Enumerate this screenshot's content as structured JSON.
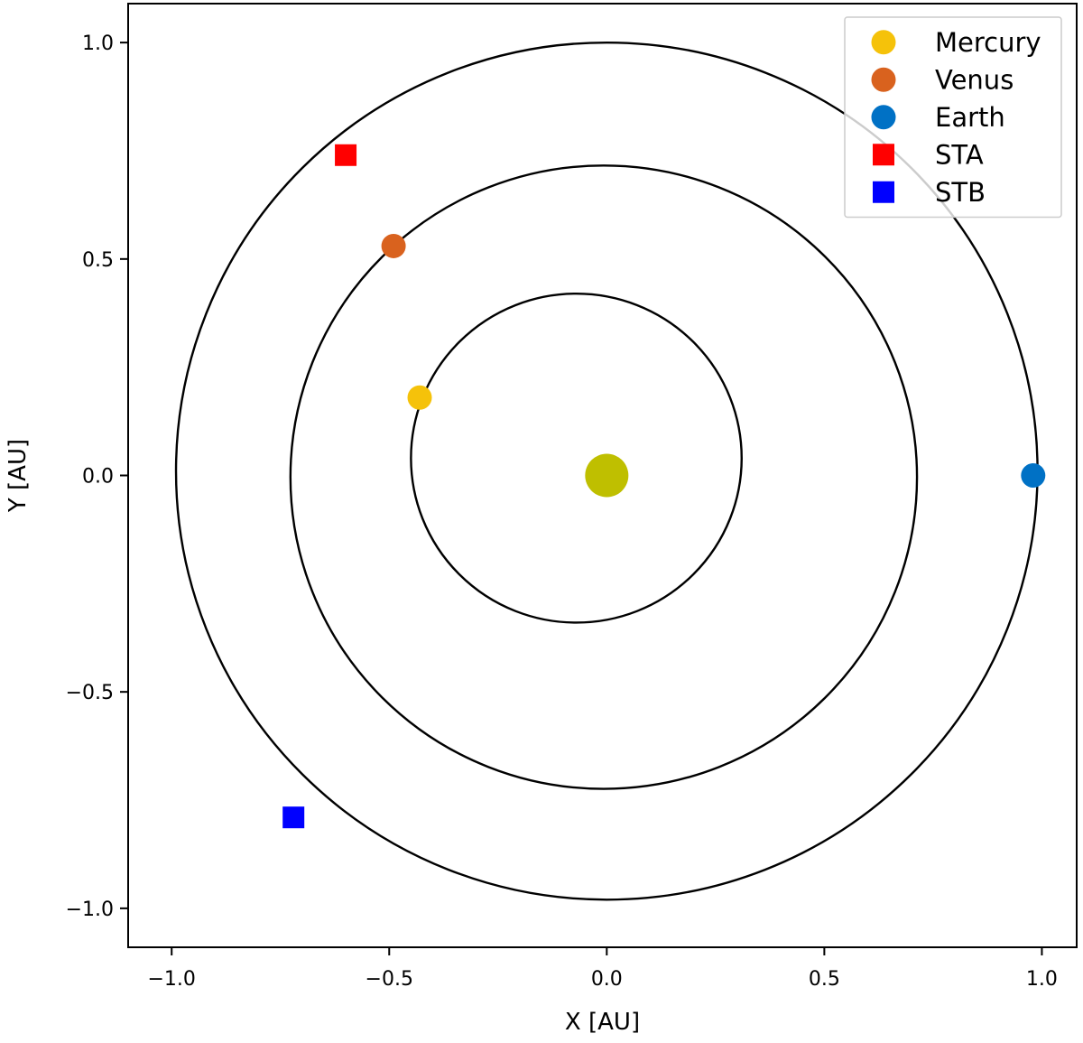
{
  "chart_data": {
    "type": "scatter",
    "title": "",
    "xlabel": "X [AU]",
    "ylabel": "Y [AU]",
    "xlim": [
      -1.1,
      1.08
    ],
    "ylim": [
      -1.09,
      1.09
    ],
    "xticks": [
      -1.0,
      -0.5,
      0.0,
      0.5,
      1.0
    ],
    "xtick_labels": [
      "−1.0",
      "−0.5",
      "0.0",
      "0.5",
      "1.0"
    ],
    "yticks": [
      -1.0,
      -0.5,
      0.0,
      0.5,
      1.0
    ],
    "ytick_labels": [
      "−1.0",
      "−0.5",
      "0.0",
      "0.5",
      "1.0"
    ],
    "grid": false,
    "legend_position": "top-right",
    "sun": {
      "x": 0.0,
      "y": 0.0,
      "color": "#bfbf00"
    },
    "orbits": [
      {
        "cx": -0.07,
        "cy": 0.04,
        "r": 0.38
      },
      {
        "cx": -0.007,
        "cy": -0.004,
        "r": 0.72
      },
      {
        "cx": 0.0,
        "cy": 0.01,
        "r": 0.99
      }
    ],
    "series": [
      {
        "name": "Mercury",
        "marker": "circle",
        "color": "#f5c20a",
        "x": [
          -0.43
        ],
        "y": [
          0.18
        ]
      },
      {
        "name": "Venus",
        "marker": "circle",
        "color": "#d9621e",
        "x": [
          -0.49
        ],
        "y": [
          0.53
        ]
      },
      {
        "name": "Earth",
        "marker": "circle",
        "color": "#0071c5",
        "x": [
          0.98
        ],
        "y": [
          0.0
        ]
      },
      {
        "name": "STA",
        "marker": "square",
        "color": "#ff0000",
        "x": [
          -0.6
        ],
        "y": [
          0.74
        ]
      },
      {
        "name": "STB",
        "marker": "square",
        "color": "#0000ff",
        "x": [
          -0.72
        ],
        "y": [
          -0.79
        ]
      }
    ]
  }
}
